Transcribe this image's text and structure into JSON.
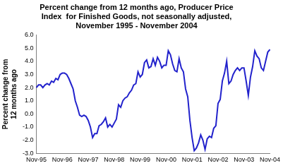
{
  "chart_data": {
    "type": "line",
    "title": [
      "Percent change from 12 months ago, Producer Price",
      "Index  for Finished Goods, not seasonally adjusted,",
      "November 1995 - November 2004"
    ],
    "y_label": [
      "Percent change from",
      "12 months ago"
    ],
    "categories": [
      "Nov-95",
      null,
      null,
      null,
      null,
      null,
      null,
      null,
      null,
      null,
      null,
      null,
      "Nov-96",
      null,
      null,
      null,
      null,
      null,
      null,
      null,
      null,
      null,
      null,
      null,
      "Nov-97",
      null,
      null,
      null,
      null,
      null,
      null,
      null,
      null,
      null,
      null,
      null,
      "Nov-98",
      null,
      null,
      null,
      null,
      null,
      null,
      null,
      null,
      null,
      null,
      null,
      "Nov-99",
      null,
      null,
      null,
      null,
      null,
      null,
      null,
      null,
      null,
      null,
      null,
      "Nov-00",
      null,
      null,
      null,
      null,
      null,
      null,
      null,
      null,
      null,
      null,
      null,
      "Nov-01",
      null,
      null,
      null,
      null,
      null,
      null,
      null,
      null,
      null,
      null,
      null,
      "Nov-02",
      null,
      null,
      null,
      null,
      null,
      null,
      null,
      null,
      null,
      null,
      null,
      "Nov-03",
      null,
      null,
      null,
      null,
      null,
      null,
      null,
      null,
      null,
      null,
      null,
      "Nov-04"
    ],
    "values": [
      2.0,
      2.2,
      2.2,
      2.0,
      2.2,
      2.3,
      2.2,
      2.5,
      2.4,
      2.7,
      2.6,
      3.0,
      3.1,
      3.1,
      3.0,
      2.7,
      2.3,
      1.9,
      1.0,
      0.5,
      -0.1,
      -0.2,
      -0.1,
      -0.2,
      -0.5,
      -1.0,
      -1.8,
      -1.5,
      -1.5,
      -0.9,
      -0.8,
      -0.6,
      -0.3,
      -1.0,
      -0.8,
      -1.0,
      -0.7,
      -0.4,
      0.7,
      0.5,
      1.0,
      1.2,
      1.3,
      1.6,
      1.8,
      2.2,
      2.3,
      3.2,
      2.8,
      3.0,
      3.9,
      4.1,
      3.5,
      3.6,
      4.2,
      3.7,
      4.3,
      4.0,
      3.5,
      3.7,
      3.7,
      4.8,
      4.5,
      3.8,
      3.3,
      3.2,
      4.2,
      3.5,
      3.2,
      1.9,
      1.3,
      -0.5,
      -1.8,
      -2.8,
      -2.6,
      -2.2,
      -1.6,
      -2.0,
      -2.7,
      -1.9,
      -1.7,
      -1.8,
      -1.1,
      -0.9,
      0.8,
      1.1,
      2.5,
      3.1,
      4.0,
      2.3,
      2.5,
      3.0,
      3.3,
      3.5,
      3.3,
      3.5,
      3.5,
      2.5,
      1.4,
      2.8,
      3.6,
      4.8,
      4.4,
      4.2,
      3.5,
      3.3,
      4.0,
      4.7,
      4.9
    ],
    "color": "#2222cc",
    "ylim": [
      -3,
      6
    ],
    "yticks": [
      {
        "value": -3,
        "label": "-3.0"
      },
      {
        "value": -2,
        "label": "-2.0"
      },
      {
        "value": -1,
        "label": "-1.0"
      },
      {
        "value": 0,
        "label": "0.0"
      },
      {
        "value": 1,
        "label": "1.0"
      },
      {
        "value": 2,
        "label": "2.0"
      },
      {
        "value": 3,
        "label": "3.0"
      },
      {
        "value": 4,
        "label": "4.0"
      },
      {
        "value": 5,
        "label": "5.0"
      },
      {
        "value": 6,
        "label": "6.0"
      }
    ],
    "grid": false
  }
}
